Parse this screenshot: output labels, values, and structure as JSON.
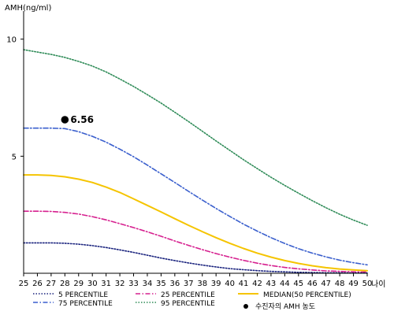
{
  "chart_data": {
    "type": "line",
    "ylabel": "AMH(ng/ml)",
    "xlabel": "나이",
    "xlim": [
      25,
      50
    ],
    "ylim": [
      0,
      11
    ],
    "yticks": [
      5,
      10
    ],
    "xticks": [
      25,
      26,
      27,
      28,
      29,
      30,
      31,
      32,
      33,
      34,
      35,
      36,
      37,
      38,
      39,
      40,
      41,
      42,
      43,
      44,
      45,
      46,
      47,
      48,
      49,
      50
    ],
    "legend_position": "bottom",
    "series": [
      {
        "key": "p95",
        "name": "95 PERCENTILE",
        "color": "#2e8b57",
        "style": "dotted",
        "x": [
          25,
          26,
          27,
          28,
          29,
          30,
          31,
          32,
          33,
          34,
          35,
          36,
          37,
          38,
          39,
          40,
          41,
          42,
          43,
          44,
          45,
          46,
          47,
          48,
          49,
          50
        ],
        "values": [
          9.55,
          9.45,
          9.35,
          9.22,
          9.05,
          8.85,
          8.6,
          8.3,
          7.98,
          7.63,
          7.27,
          6.88,
          6.48,
          6.07,
          5.65,
          5.25,
          4.85,
          4.47,
          4.1,
          3.75,
          3.42,
          3.1,
          2.8,
          2.52,
          2.27,
          2.05
        ]
      },
      {
        "key": "p75",
        "name": "75 PERCENTILE",
        "color": "#3a5fcd",
        "style": "dashdot",
        "x": [
          25,
          26,
          27,
          28,
          29,
          30,
          31,
          32,
          33,
          34,
          35,
          36,
          37,
          38,
          39,
          40,
          41,
          42,
          43,
          44,
          45,
          46,
          47,
          48,
          49,
          50
        ],
        "values": [
          6.2,
          6.2,
          6.2,
          6.18,
          6.05,
          5.85,
          5.6,
          5.3,
          4.98,
          4.62,
          4.25,
          3.88,
          3.5,
          3.13,
          2.77,
          2.43,
          2.1,
          1.8,
          1.52,
          1.27,
          1.05,
          0.86,
          0.7,
          0.56,
          0.45,
          0.36
        ]
      },
      {
        "key": "p50",
        "name": "MEDIAN(50 PERCENTILE)",
        "color": "#f5c400",
        "style": "solid",
        "x": [
          25,
          26,
          27,
          28,
          29,
          30,
          31,
          32,
          33,
          34,
          35,
          36,
          37,
          38,
          39,
          40,
          41,
          42,
          43,
          44,
          45,
          46,
          47,
          48,
          49,
          50
        ],
        "values": [
          4.2,
          4.2,
          4.18,
          4.12,
          4.02,
          3.88,
          3.68,
          3.45,
          3.18,
          2.9,
          2.62,
          2.33,
          2.05,
          1.78,
          1.52,
          1.28,
          1.06,
          0.86,
          0.69,
          0.54,
          0.42,
          0.32,
          0.24,
          0.18,
          0.14,
          0.11
        ]
      },
      {
        "key": "p25",
        "name": "25 PERCENTILE",
        "color": "#d6208f",
        "style": "dashdot",
        "x": [
          25,
          26,
          27,
          28,
          29,
          30,
          31,
          32,
          33,
          34,
          35,
          36,
          37,
          38,
          39,
          40,
          41,
          42,
          43,
          44,
          45,
          46,
          47,
          48,
          49,
          50
        ],
        "values": [
          2.65,
          2.65,
          2.64,
          2.6,
          2.53,
          2.42,
          2.28,
          2.12,
          1.95,
          1.77,
          1.58,
          1.38,
          1.19,
          1.01,
          0.84,
          0.69,
          0.55,
          0.43,
          0.33,
          0.25,
          0.19,
          0.14,
          0.1,
          0.08,
          0.06,
          0.05
        ]
      },
      {
        "key": "p5",
        "name": "5 PERCENTILE",
        "color": "#1a237e",
        "style": "dotted",
        "x": [
          25,
          26,
          27,
          28,
          29,
          30,
          31,
          32,
          33,
          34,
          35,
          36,
          37,
          38,
          39,
          40,
          41,
          42,
          43,
          44,
          45,
          46,
          47,
          48,
          49,
          50
        ],
        "values": [
          1.3,
          1.3,
          1.3,
          1.28,
          1.24,
          1.18,
          1.1,
          1.0,
          0.89,
          0.77,
          0.65,
          0.54,
          0.44,
          0.35,
          0.27,
          0.2,
          0.15,
          0.11,
          0.08,
          0.06,
          0.04,
          0.03,
          0.02,
          0.02,
          0.01,
          0.01
        ]
      }
    ],
    "point": {
      "name": "수진자의 AMH 농도",
      "x": 28,
      "y": 6.56,
      "label": "6.56"
    },
    "legend_order": [
      "p5",
      "p25",
      "p50",
      "p75",
      "p95",
      "point"
    ]
  }
}
